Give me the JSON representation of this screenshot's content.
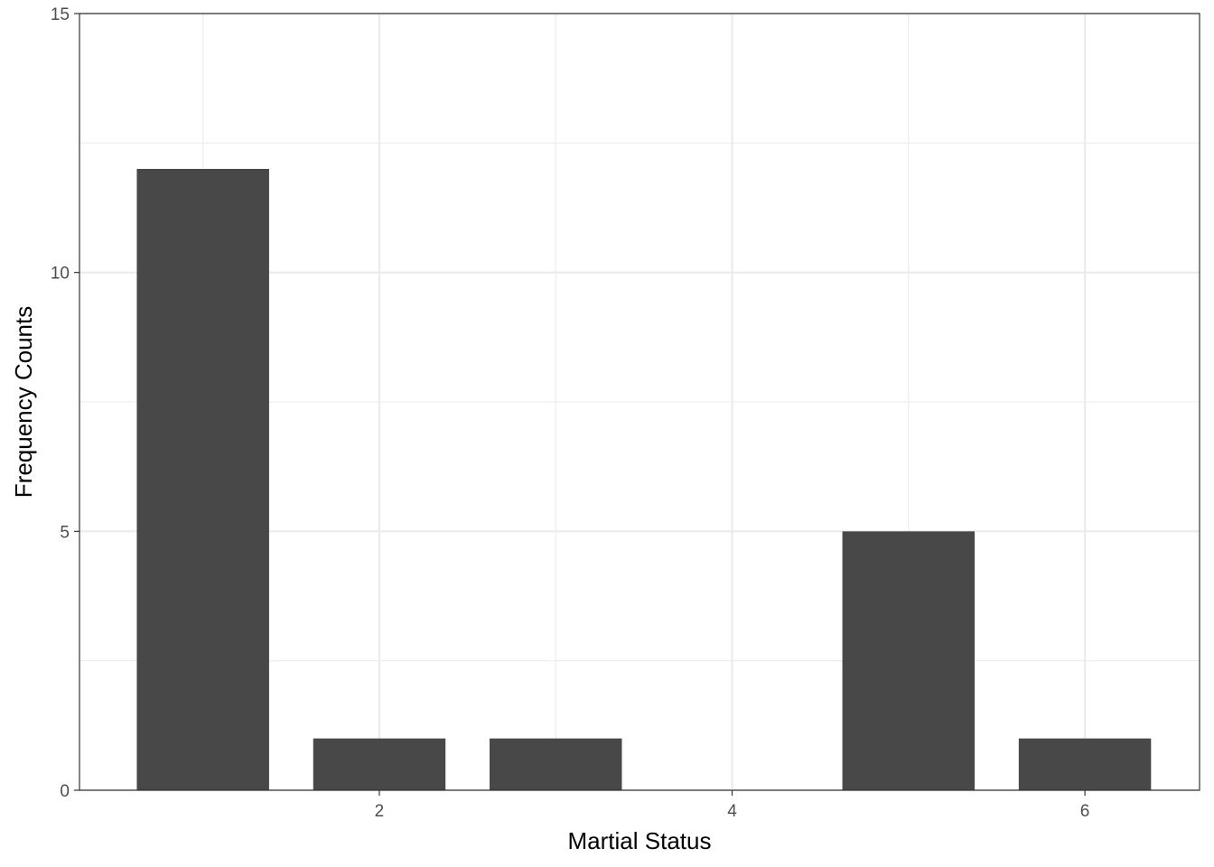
{
  "chart_data": {
    "type": "bar",
    "x": [
      1,
      2,
      3,
      4,
      5,
      6
    ],
    "values": [
      12,
      1,
      1,
      0,
      5,
      1
    ],
    "xlabel": "Martial Status",
    "ylabel": "Frequency Counts",
    "xlim": [
      0.3,
      6.65
    ],
    "ylim": [
      0,
      15
    ],
    "x_ticks": [
      2,
      4,
      6
    ],
    "y_ticks": [
      0,
      5,
      10,
      15
    ],
    "bar_width": 0.75,
    "grid": true,
    "bar_color": "#484848",
    "grid_color": "#ebebeb"
  }
}
